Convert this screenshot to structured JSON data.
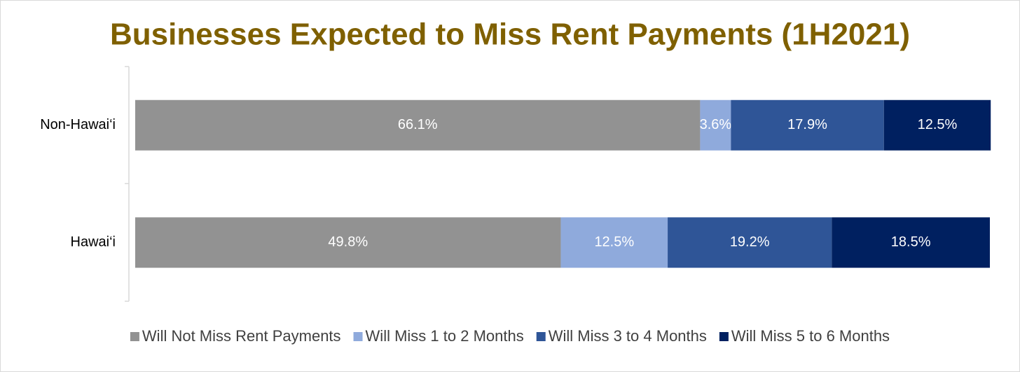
{
  "chart_data": {
    "type": "stacked-barh",
    "title": "Businesses Expected to Miss Rent Payments (1H2021)",
    "categories": [
      "Non-Hawai‘i",
      "Hawai‘i"
    ],
    "xlim": [
      0,
      100
    ],
    "legend": "bottom",
    "series": [
      {
        "name": "Will Not Miss Rent Payments",
        "color": "#929292",
        "values": [
          66.1,
          49.8
        ],
        "value_labels": [
          "66.1%",
          "49.8%"
        ]
      },
      {
        "name": "Will Miss 1 to 2 Months",
        "color": "#8faadc",
        "values": [
          3.6,
          12.5
        ],
        "value_labels": [
          "3.6%",
          "12.5%"
        ]
      },
      {
        "name": "Will Miss 3 to 4 Months",
        "color": "#2f5597",
        "values": [
          17.9,
          19.2
        ],
        "value_labels": [
          "17.9%",
          "19.2%"
        ]
      },
      {
        "name": "Will Miss 5 to 6 Months",
        "color": "#002060",
        "values": [
          12.5,
          18.5
        ],
        "value_labels": [
          "12.5%",
          "18.5%"
        ]
      }
    ]
  }
}
